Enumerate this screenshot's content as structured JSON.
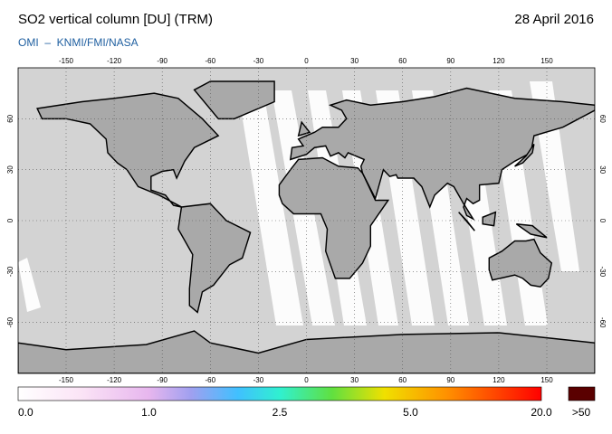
{
  "header": {
    "title": "SO2 vertical column [DU] (TRM)",
    "date": "28 April 2016",
    "subtitle": "OMI  –  KNMI/FMI/NASA"
  },
  "map": {
    "longitude_ticks": [
      -150,
      -120,
      -90,
      -60,
      -30,
      0,
      30,
      60,
      90,
      120,
      150
    ],
    "latitude_ticks": [
      60,
      30,
      0,
      -30,
      -60
    ]
  },
  "colorbar": {
    "labels": [
      "0.0",
      "1.0",
      "2.5",
      "5.0",
      "20.0"
    ],
    "overflow_label": ">50"
  }
}
